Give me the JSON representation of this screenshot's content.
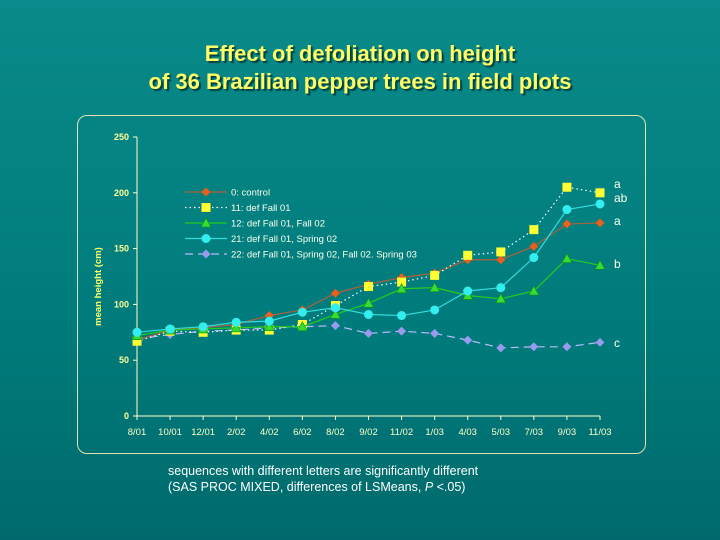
{
  "title_line1": "Effect of defoliation on height",
  "title_line2": "of 36 Brazilian pepper trees in field plots",
  "note_line1": "sequences with different letters are significantly different",
  "note_line2_pre": "(SAS PROC MIXED, differences of LSMeans, ",
  "note_line2_p": "P",
  "note_line2_post": " <.05)",
  "chart_data": {
    "type": "line",
    "ylabel": "mean height (cm)",
    "ylim": [
      0,
      250
    ],
    "yticks": [
      0,
      50,
      100,
      150,
      200,
      250
    ],
    "categories": [
      "8/01",
      "10/01",
      "12/01",
      "2/02",
      "4/02",
      "6/02",
      "8/02",
      "9/02",
      "11/02",
      "1/03",
      "4/03",
      "5/03",
      "7/03",
      "9/03",
      "11/03"
    ],
    "legend_placement": "upper-left inside",
    "series": [
      {
        "name": "0: control",
        "color": "#e8601c",
        "line_color": "#b0603a",
        "marker": "diamond",
        "dash": "solid",
        "letter": "a",
        "values": [
          68,
          77,
          79,
          82,
          90,
          95,
          110,
          118,
          124,
          128,
          140,
          140,
          152,
          172,
          173
        ]
      },
      {
        "name": "11: def Fall 01",
        "color": "#ffff33",
        "line_color": "#ffffff",
        "marker": "square",
        "dash": "dotted",
        "letter": "a",
        "values": [
          67,
          76,
          75,
          77,
          77,
          82,
          99,
          116,
          120,
          126,
          144,
          147,
          167,
          205,
          200
        ]
      },
      {
        "name": "12: def Fall 01, Fall 02",
        "color": "#33dd33",
        "line_color": "#22cc22",
        "marker": "triangle",
        "dash": "solid",
        "letter": "b",
        "values": [
          72,
          77,
          78,
          79,
          80,
          80,
          91,
          101,
          114,
          115,
          108,
          105,
          112,
          141,
          135
        ]
      },
      {
        "name": "21: def Fall 01, Spring 02",
        "color": "#33eeee",
        "line_color": "#33dddd",
        "marker": "circle",
        "dash": "solid",
        "letter": "ab",
        "values": [
          75,
          78,
          80,
          84,
          85,
          93,
          97,
          91,
          90,
          95,
          112,
          115,
          142,
          185,
          190
        ]
      },
      {
        "name": "22: def Fall 01, Spring 02, Fall 02. Spring 03",
        "color": "#9999ee",
        "line_color": "#bbbbff",
        "marker": "diamond",
        "dash": "dashed",
        "letter": "c",
        "values": [
          69,
          73,
          76,
          77,
          79,
          80,
          81,
          74,
          76,
          74,
          68,
          61,
          62,
          62,
          66
        ]
      }
    ]
  }
}
